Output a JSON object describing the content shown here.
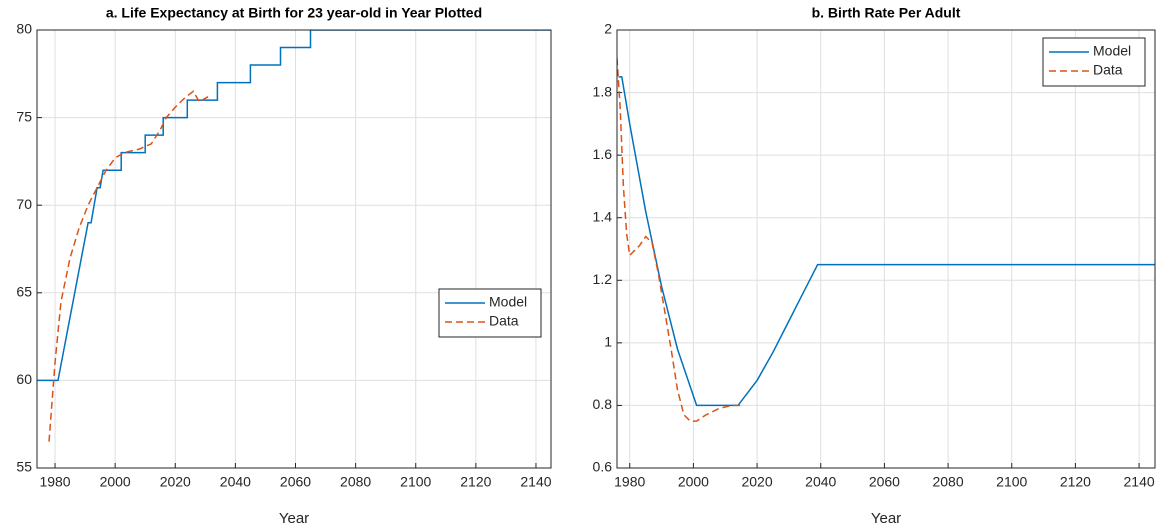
{
  "chart_data": [
    {
      "type": "line",
      "title": "a. Life Expectancy at Birth for 23 year-old in Year Plotted",
      "xlabel": "Year",
      "xlim": [
        1974,
        2145
      ],
      "xticks": [
        1980,
        2000,
        2020,
        2040,
        2060,
        2080,
        2100,
        2120,
        2140
      ],
      "ylim": [
        55,
        80
      ],
      "yticks": [
        55,
        60,
        65,
        70,
        75,
        80
      ],
      "grid": true,
      "legend": "east",
      "series": [
        {
          "name": "Model",
          "color": "#0072bd",
          "dash": "solid",
          "x": [
            1974,
            1981,
            1991,
            1992,
            1994,
            1995,
            1996,
            2002,
            2002,
            2010,
            2010,
            2016,
            2016,
            2024,
            2024,
            2034,
            2034,
            2045,
            2045,
            2055,
            2055,
            2065,
            2065,
            2145
          ],
          "values": [
            60,
            60,
            69,
            69,
            71,
            71,
            72,
            72,
            73,
            73,
            74,
            74,
            75,
            75,
            76,
            76,
            77,
            77,
            78,
            78,
            79,
            79,
            80,
            80
          ]
        },
        {
          "name": "Data",
          "color": "#d95319",
          "dash": "dashed",
          "x": [
            1978,
            1980,
            1982,
            1985,
            1988,
            1991,
            1994,
            1997,
            2000,
            2003,
            2008,
            2012,
            2015,
            2017,
            2020,
            2023,
            2026,
            2028,
            2030,
            2032
          ],
          "values": [
            56.5,
            61,
            64.5,
            67,
            68.7,
            70,
            71,
            72,
            72.7,
            73,
            73.2,
            73.5,
            74.3,
            75,
            75.6,
            76.1,
            76.5,
            75.9,
            76.1,
            76.3
          ]
        }
      ]
    },
    {
      "type": "line",
      "title": "b. Birth Rate Per Adult",
      "xlabel": "Year",
      "xlim": [
        1976,
        2145
      ],
      "xticks": [
        1980,
        2000,
        2020,
        2040,
        2060,
        2080,
        2100,
        2120,
        2140
      ],
      "ylim": [
        0.6,
        2
      ],
      "yticks": [
        0.6,
        0.8,
        1,
        1.2,
        1.4,
        1.6,
        1.8,
        2
      ],
      "grid": true,
      "legend": "northeast",
      "series": [
        {
          "name": "Model",
          "color": "#0072bd",
          "dash": "solid",
          "x": [
            1976.5,
            1977.5,
            1980,
            1985,
            1990,
            1995,
            2001,
            2014,
            2020,
            2025,
            2030,
            2035,
            2039,
            2145
          ],
          "values": [
            1.85,
            1.85,
            1.7,
            1.42,
            1.18,
            0.98,
            0.8,
            0.8,
            0.88,
            0.97,
            1.07,
            1.17,
            1.25,
            1.25
          ]
        },
        {
          "name": "Data",
          "color": "#d95319",
          "dash": "dashed",
          "x": [
            1976,
            1977,
            1978,
            1979,
            1980,
            1981,
            1983,
            1985,
            1987,
            1989,
            1991,
            1993,
            1995,
            1997,
            1999,
            2001,
            2004,
            2008,
            2012,
            2015
          ],
          "values": [
            1.91,
            1.75,
            1.5,
            1.35,
            1.28,
            1.29,
            1.31,
            1.34,
            1.32,
            1.22,
            1.1,
            0.98,
            0.85,
            0.77,
            0.75,
            0.75,
            0.77,
            0.79,
            0.8,
            0.8
          ]
        }
      ]
    }
  ]
}
